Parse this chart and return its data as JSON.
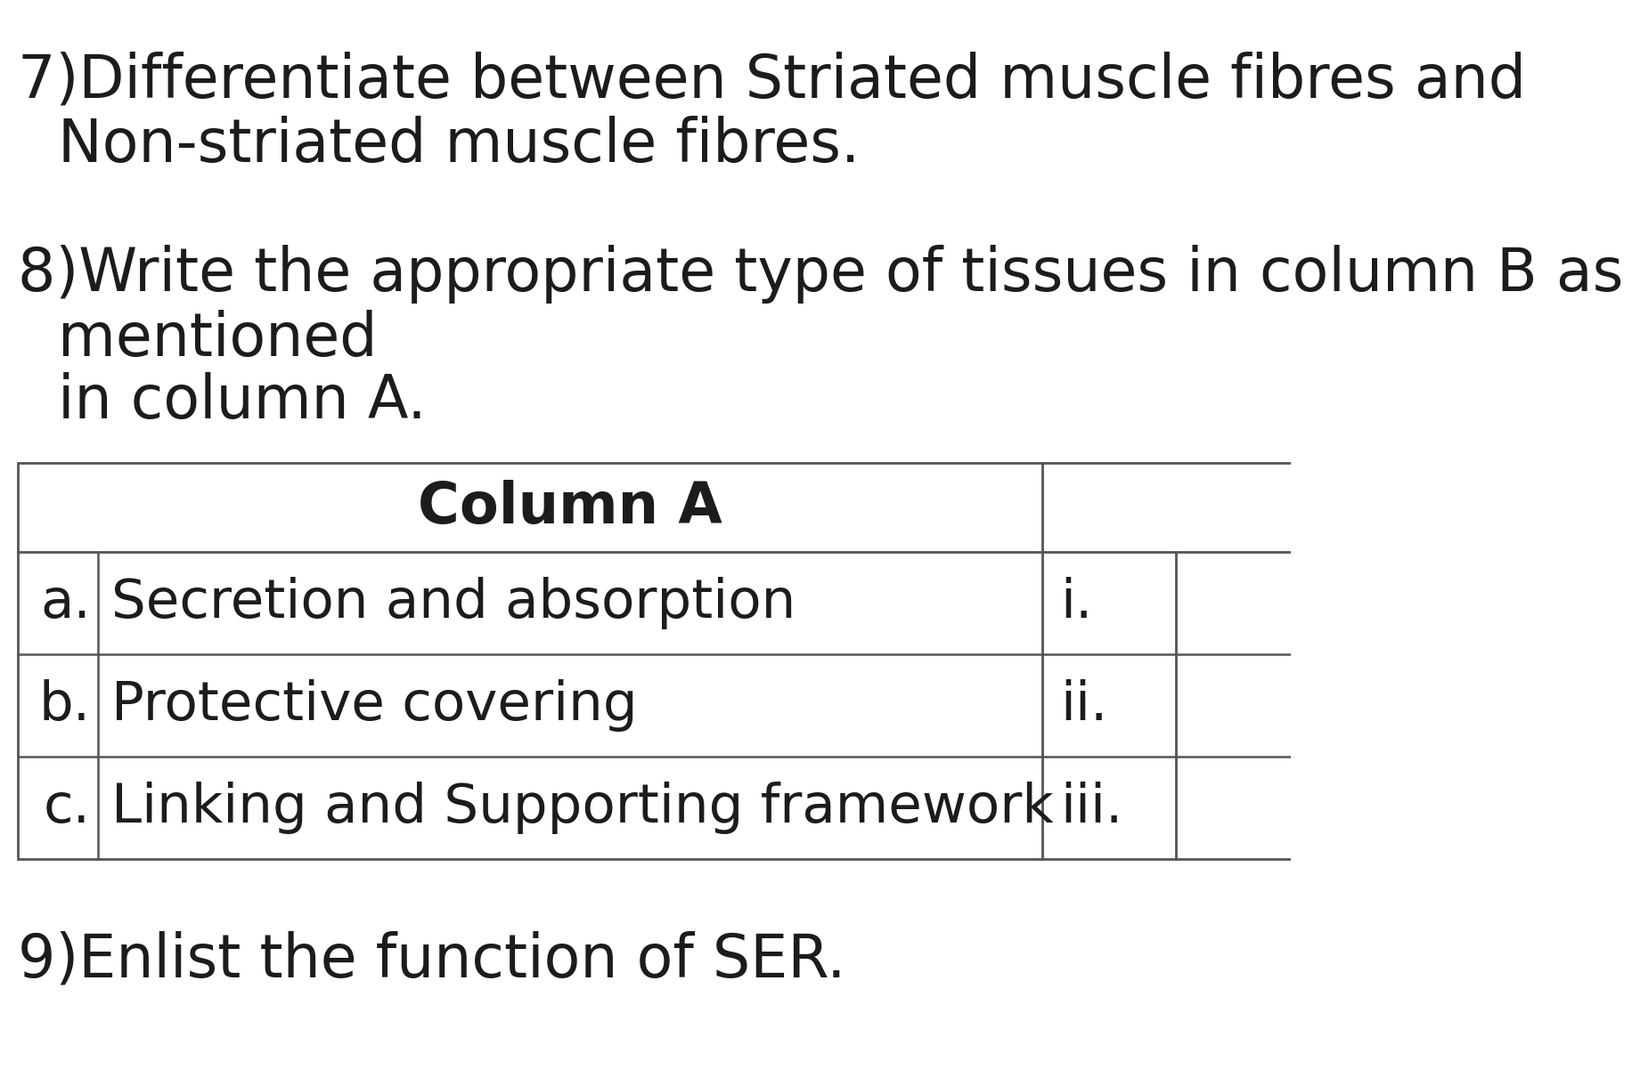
{
  "background_color": "#ffffff",
  "text_color": "#1a1a1a",
  "q7_line1": "7)Differentiate between Striated muscle fibres and",
  "q7_line2": "   Non-striated muscle fibres.",
  "q8_line1": "8)Write the appropriate type of tissues in column B as",
  "q8_line2": "   mentioned",
  "q8_line3": "   in column A.",
  "table_header": "Column A",
  "table_rows": [
    [
      "a.",
      "Secretion and absorption",
      "i."
    ],
    [
      "b.",
      "Protective covering",
      "ii."
    ],
    [
      "c.",
      "Linking and Supporting framework",
      "iii."
    ]
  ],
  "question9": "9)Enlist the function of SER.",
  "font_size_main": 48,
  "font_size_table": 44,
  "font_size_header": 46,
  "text_color_dark": "#1c1c1c"
}
